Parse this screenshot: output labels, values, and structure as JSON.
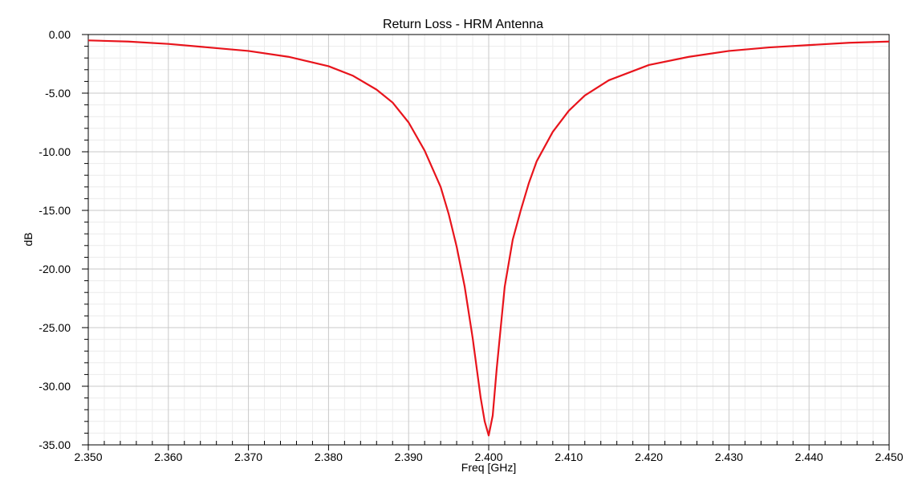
{
  "chart_data": {
    "type": "line",
    "title": "Return Loss - HRM Antenna",
    "xlabel": "Freq [GHz]",
    "ylabel": "dB",
    "xlim": [
      2.35,
      2.45
    ],
    "ylim": [
      -35,
      0
    ],
    "x_ticks": [
      "2.350",
      "2.360",
      "2.370",
      "2.380",
      "2.390",
      "2.400",
      "2.410",
      "2.420",
      "2.430",
      "2.440",
      "2.450"
    ],
    "y_ticks": [
      "0.00",
      "-5.00",
      "-10.00",
      "-15.00",
      "-20.00",
      "-25.00",
      "-30.00",
      "-35.00"
    ],
    "grid": true,
    "line_color": "#e8141c",
    "series": [
      {
        "x": [
          2.35,
          2.355,
          2.36,
          2.365,
          2.37,
          2.375,
          2.38,
          2.383,
          2.386,
          2.388,
          2.39,
          2.392,
          2.394,
          2.395,
          2.396,
          2.397,
          2.398,
          2.399,
          2.3995,
          2.4,
          2.4005,
          2.401,
          2.402,
          2.403,
          2.404,
          2.405,
          2.406,
          2.408,
          2.41,
          2.412,
          2.415,
          2.42,
          2.425,
          2.43,
          2.435,
          2.44,
          2.445,
          2.45
        ],
        "y": [
          -0.5,
          -0.6,
          -0.8,
          -1.1,
          -1.4,
          -1.9,
          -2.7,
          -3.5,
          -4.7,
          -5.8,
          -7.5,
          -9.9,
          -13.0,
          -15.3,
          -18.1,
          -21.5,
          -25.9,
          -31.0,
          -33.0,
          -34.2,
          -32.5,
          -28.5,
          -21.5,
          -17.5,
          -15.0,
          -12.7,
          -10.8,
          -8.3,
          -6.5,
          -5.2,
          -3.9,
          -2.6,
          -1.9,
          -1.4,
          -1.1,
          -0.9,
          -0.7,
          -0.6
        ]
      }
    ]
  }
}
